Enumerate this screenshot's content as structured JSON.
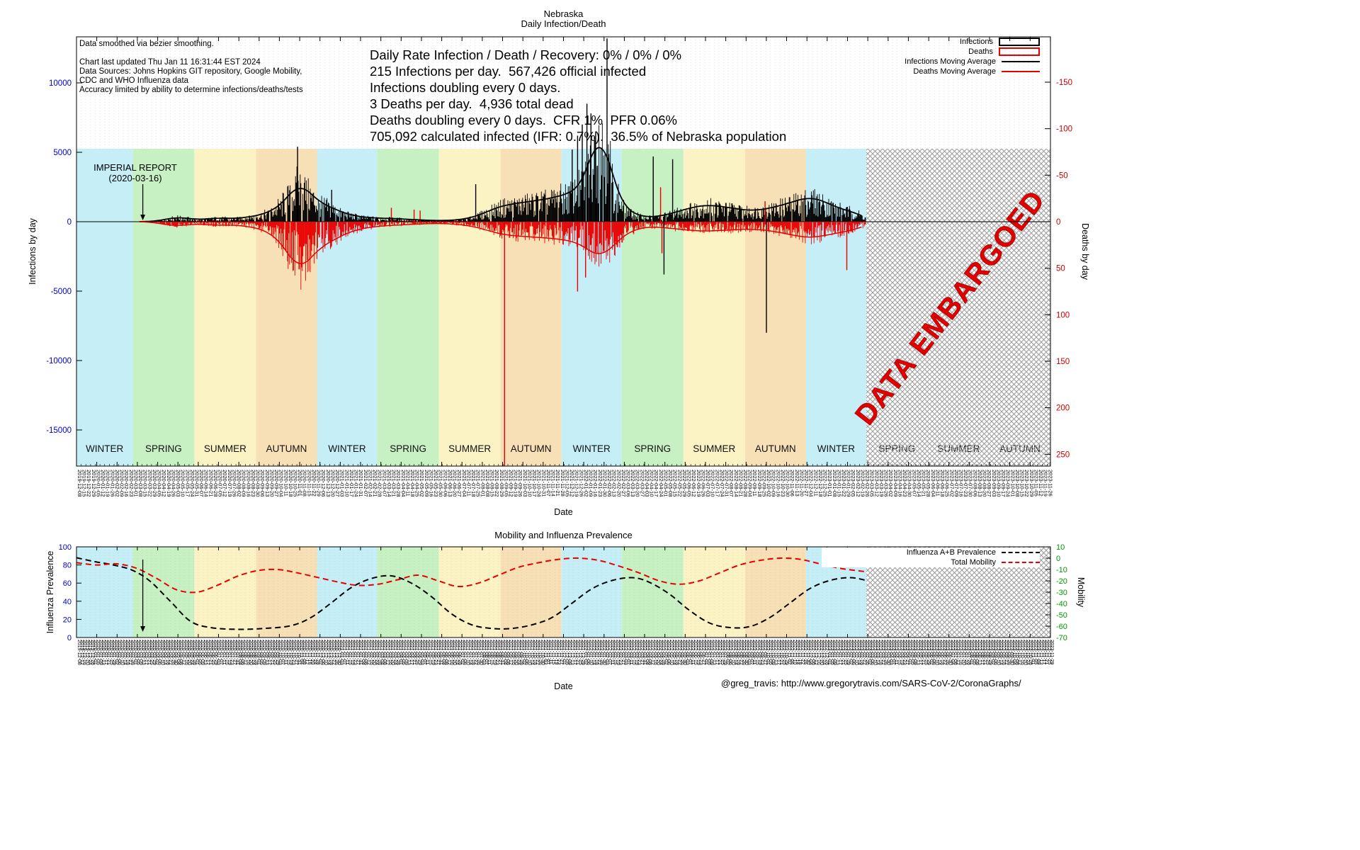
{
  "header": {
    "title": "Nebraska",
    "subtitle": "Daily Infection/Death"
  },
  "footer": {
    "credit": "@greg_travis: http://www.gregorytravis.com/SARS-CoV-2/CoronaGraphs/"
  },
  "colors": {
    "axis_blue": "#0000cc",
    "axis_red": "#cc0000",
    "axis_green": "#009900",
    "red": "#e80000",
    "hatch": "#9a9a9a",
    "watermark": "#e00000",
    "seasons": [
      "#c5eef7",
      "#c8f1c3",
      "#fcf3c4",
      "#f8e0b6"
    ]
  },
  "top_chart": {
    "info_lines": [
      "Data smoothed via bezier smoothing.",
      "",
      "Chart last updated Thu Jan 11 16:31:44 EST 2024",
      "Data Sources: Johns Hopkins GIT repository, Google Mobility,",
      "CDC and WHO Influenza data",
      "Accuracy limited by ability to determine infections/deaths/tests"
    ],
    "stats_lines": [
      "Daily Rate Infection / Death / Recovery: 0% / 0% / 0%",
      "215 Infections per day.  567,426 official infected",
      "Infections doubling every 0 days.",
      "3 Deaths per day.  4,936 total dead",
      "Deaths doubling every 0 days.  CFR 1%  PFR 0.06%",
      "705,092 calculated infected (IFR: 0.7%).  36.5% of Nebraska population"
    ],
    "annotation_line1": "IMPERIAL REPORT",
    "annotation_line2": "(2020-03-16)",
    "watermark": "DATA EMBARGOED",
    "legend": [
      {
        "label": "Infections",
        "type": "box",
        "color": "#000000"
      },
      {
        "label": "Deaths",
        "type": "box",
        "color": "#e80000"
      },
      {
        "label": "Infections Moving Average",
        "type": "line",
        "color": "#000000"
      },
      {
        "label": "Deaths Moving Average",
        "type": "line",
        "color": "#e80000"
      }
    ],
    "x_axis": {
      "start_date": "2019-12-08",
      "interval_days": 7,
      "count": 208
    }
  },
  "bottom_chart": {
    "legend": [
      {
        "label": "Influenza A+B Prevalence",
        "type": "dash",
        "color": "#000000"
      },
      {
        "label": "Total Mobility",
        "type": "dash",
        "color": "#e80000"
      }
    ],
    "x_axis": {
      "start_date": "2019-12-08",
      "interval_days": 4,
      "count": 364
    }
  },
  "chart_data": [
    {
      "type": "bar",
      "title": "Nebraska Daily Infection/Death",
      "xlabel": "Date",
      "ylabel_left": "Infections by day",
      "ylabel_right": "Deaths by day",
      "x_start_date": "2019-12-08",
      "x_total_days": 1454,
      "data_start_day": 95,
      "data_end_day": 1178,
      "embargo_start_day": 1179,
      "annotation_day": 99,
      "deaths_scale": 67,
      "ylim_left": [
        -17600,
        13300
      ],
      "y_left_ticks": [
        10000,
        5000,
        0,
        -5000,
        -10000,
        -15000
      ],
      "y_right_ticks": [
        -150,
        -100,
        -50,
        0,
        50,
        100,
        150,
        200,
        250
      ],
      "season_boundaries_days": [
        0,
        84,
        176,
        268,
        359,
        449,
        541,
        633,
        724,
        814,
        906,
        998,
        1089,
        1179,
        1271,
        1363,
        1454
      ],
      "season_labels": [
        "WINTER",
        "SPRING",
        "SUMMER",
        "AUTUMN",
        "WINTER",
        "SPRING",
        "SUMMER",
        "AUTUMN",
        "WINTER",
        "SPRING",
        "SUMMER",
        "AUTUMN",
        "WINTER",
        "SPRING",
        "SUMMER",
        "AUTUMN"
      ],
      "weekly_infections_per_day": [
        0,
        0,
        0,
        0,
        0,
        0,
        0,
        0,
        0,
        0,
        0,
        0,
        0,
        0,
        5,
        15,
        30,
        60,
        120,
        200,
        280,
        340,
        300,
        260,
        200,
        170,
        150,
        180,
        220,
        260,
        280,
        260,
        240,
        230,
        250,
        280,
        320,
        380,
        450,
        520,
        600,
        750,
        950,
        1200,
        1500,
        1900,
        2400,
        2800,
        2600,
        2200,
        1800,
        1500,
        1300,
        1200,
        1000,
        850,
        700,
        600,
        500,
        420,
        360,
        320,
        300,
        280,
        260,
        250,
        240,
        230,
        220,
        200,
        180,
        160,
        140,
        120,
        110,
        100,
        90,
        85,
        80,
        90,
        110,
        140,
        180,
        240,
        320,
        420,
        550,
        700,
        850,
        1000,
        1100,
        1200,
        1250,
        1300,
        1350,
        1400,
        1450,
        1500,
        1550,
        1600,
        1650,
        1700,
        1800,
        1900,
        2000,
        2100,
        2300,
        2600,
        3200,
        4200,
        5500,
        6500,
        6000,
        4500,
        3000,
        2000,
        1300,
        900,
        650,
        500,
        400,
        350,
        330,
        350,
        400,
        480,
        560,
        650,
        750,
        850,
        950,
        1050,
        1100,
        1150,
        1200,
        1200,
        1150,
        1100,
        1050,
        1000,
        950,
        900,
        850,
        800,
        800,
        850,
        900,
        950,
        1000,
        1100,
        1200,
        1300,
        1400,
        1500,
        1600,
        1700,
        1750,
        1700,
        1600,
        1450,
        1300,
        1150,
        1000,
        900,
        800,
        700,
        600,
        450,
        300,
        150
      ],
      "weekly_deaths_per_day": [
        0,
        0,
        0,
        0,
        0,
        0,
        0,
        0,
        0,
        0,
        0,
        0,
        0,
        0,
        0.2,
        0.3,
        0.8,
        1.5,
        2.5,
        3.5,
        4,
        4.5,
        4,
        3.5,
        3,
        2.5,
        2.5,
        3,
        3.5,
        4,
        4,
        3.5,
        3.5,
        3.5,
        4,
        4.5,
        5,
        6,
        7,
        8,
        10,
        13,
        17,
        22,
        28,
        36,
        45,
        52,
        48,
        42,
        36,
        30,
        26,
        24,
        21,
        18,
        15,
        13,
        11,
        9,
        8,
        7,
        6,
        5.5,
        5,
        4.5,
        4,
        4,
        3.5,
        3.5,
        3,
        3,
        2.5,
        2.5,
        2,
        2,
        2,
        2,
        2,
        2,
        2.5,
        3,
        3.5,
        4,
        5,
        6,
        7.5,
        9,
        10.5,
        12,
        13,
        14,
        15,
        15,
        15.5,
        16,
        16,
        16.5,
        17,
        17,
        17.5,
        18,
        18.5,
        19,
        20,
        21,
        22,
        24,
        27,
        31,
        35,
        38,
        36,
        31,
        26,
        21,
        16,
        12,
        10,
        8,
        7,
        6,
        5.5,
        5.5,
        6,
        6.5,
        7,
        7.5,
        8,
        8.5,
        9,
        9.5,
        10,
        10,
        10,
        10,
        9.5,
        9.5,
        9,
        9,
        8.5,
        8.5,
        8,
        8,
        8,
        8.5,
        9,
        9.5,
        10,
        11,
        12,
        13,
        14,
        15,
        16,
        17,
        17,
        16.5,
        16,
        15,
        14,
        13,
        12,
        11,
        10,
        9,
        8,
        6,
        4,
        2
      ],
      "infection_spike_bars": [
        [
          330,
          5400
        ],
        [
          381,
          2300
        ],
        [
          596,
          2700
        ],
        [
          740,
          5200
        ],
        [
          748,
          6200
        ],
        [
          755,
          7000
        ],
        [
          762,
          8500
        ],
        [
          768,
          7800
        ],
        [
          775,
          6500
        ],
        [
          792,
          13200
        ],
        [
          861,
          4700
        ],
        [
          890,
          4500
        ],
        [
          877,
          -3800
        ],
        [
          1030,
          -8000
        ]
      ],
      "death_spike_bars": [
        [
          470,
          -15
        ],
        [
          504,
          -13
        ],
        [
          513,
          -12
        ],
        [
          639,
          265
        ],
        [
          748,
          75
        ],
        [
          760,
          60
        ],
        [
          872,
          -37
        ],
        [
          874,
          34
        ],
        [
          1028,
          -22
        ],
        [
          1150,
          52
        ]
      ]
    },
    {
      "type": "line",
      "title": "Mobility and Influenza Prevalence",
      "xlabel": "Date",
      "ylabel_left": "Influenza Prevalence",
      "ylabel_right": "Mobility",
      "ylim_left": [
        0,
        100
      ],
      "ylim_right": [
        -70,
        10
      ],
      "y_left_ticks": [
        100,
        80,
        60,
        40,
        20,
        0
      ],
      "y_right_ticks": [
        10,
        0,
        -10,
        -20,
        -30,
        -40,
        -50,
        -60,
        -70
      ],
      "series": [
        {
          "name": "Influenza A+B Prevalence",
          "axis": "left",
          "color": "#000000",
          "dash": true,
          "points": [
            [
              0,
              88
            ],
            [
              25,
              84
            ],
            [
              55,
              80
            ],
            [
              84,
              74
            ],
            [
              110,
              62
            ],
            [
              140,
              40
            ],
            [
              170,
              18
            ],
            [
              200,
              11
            ],
            [
              240,
              9
            ],
            [
              280,
              10
            ],
            [
              320,
              13
            ],
            [
              350,
              22
            ],
            [
              380,
              38
            ],
            [
              410,
              55
            ],
            [
              440,
              65
            ],
            [
              470,
              68
            ],
            [
              500,
              60
            ],
            [
              530,
              45
            ],
            [
              560,
              26
            ],
            [
              590,
              14
            ],
            [
              620,
              10
            ],
            [
              650,
              10
            ],
            [
              680,
              14
            ],
            [
              710,
              22
            ],
            [
              740,
              38
            ],
            [
              770,
              54
            ],
            [
              800,
              63
            ],
            [
              830,
              66
            ],
            [
              855,
              61
            ],
            [
              885,
              48
            ],
            [
              915,
              30
            ],
            [
              945,
              16
            ],
            [
              975,
              11
            ],
            [
              1005,
              12
            ],
            [
              1035,
              22
            ],
            [
              1065,
              38
            ],
            [
              1095,
              54
            ],
            [
              1125,
              63
            ],
            [
              1155,
              66
            ],
            [
              1179,
              63
            ]
          ]
        },
        {
          "name": "Total Mobility",
          "axis": "right",
          "color": "#e80000",
          "dash": true,
          "points": [
            [
              0,
              -4
            ],
            [
              30,
              -6
            ],
            [
              60,
              -5
            ],
            [
              90,
              -9
            ],
            [
              120,
              -18
            ],
            [
              150,
              -28
            ],
            [
              180,
              -30
            ],
            [
              210,
              -24
            ],
            [
              240,
              -16
            ],
            [
              270,
              -11
            ],
            [
              300,
              -10
            ],
            [
              330,
              -13
            ],
            [
              360,
              -17
            ],
            [
              390,
              -21
            ],
            [
              420,
              -24
            ],
            [
              450,
              -23
            ],
            [
              480,
              -19
            ],
            [
              510,
              -15
            ],
            [
              540,
              -20
            ],
            [
              570,
              -25
            ],
            [
              600,
              -22
            ],
            [
              630,
              -15
            ],
            [
              660,
              -8
            ],
            [
              690,
              -4
            ],
            [
              720,
              -1
            ],
            [
              750,
              0
            ],
            [
              780,
              -2
            ],
            [
              810,
              -7
            ],
            [
              840,
              -13
            ],
            [
              870,
              -20
            ],
            [
              900,
              -23
            ],
            [
              930,
              -20
            ],
            [
              960,
              -13
            ],
            [
              990,
              -6
            ],
            [
              1020,
              -2
            ],
            [
              1050,
              0
            ],
            [
              1080,
              -1
            ],
            [
              1110,
              -5
            ],
            [
              1140,
              -9
            ],
            [
              1179,
              -12
            ]
          ]
        }
      ]
    }
  ]
}
